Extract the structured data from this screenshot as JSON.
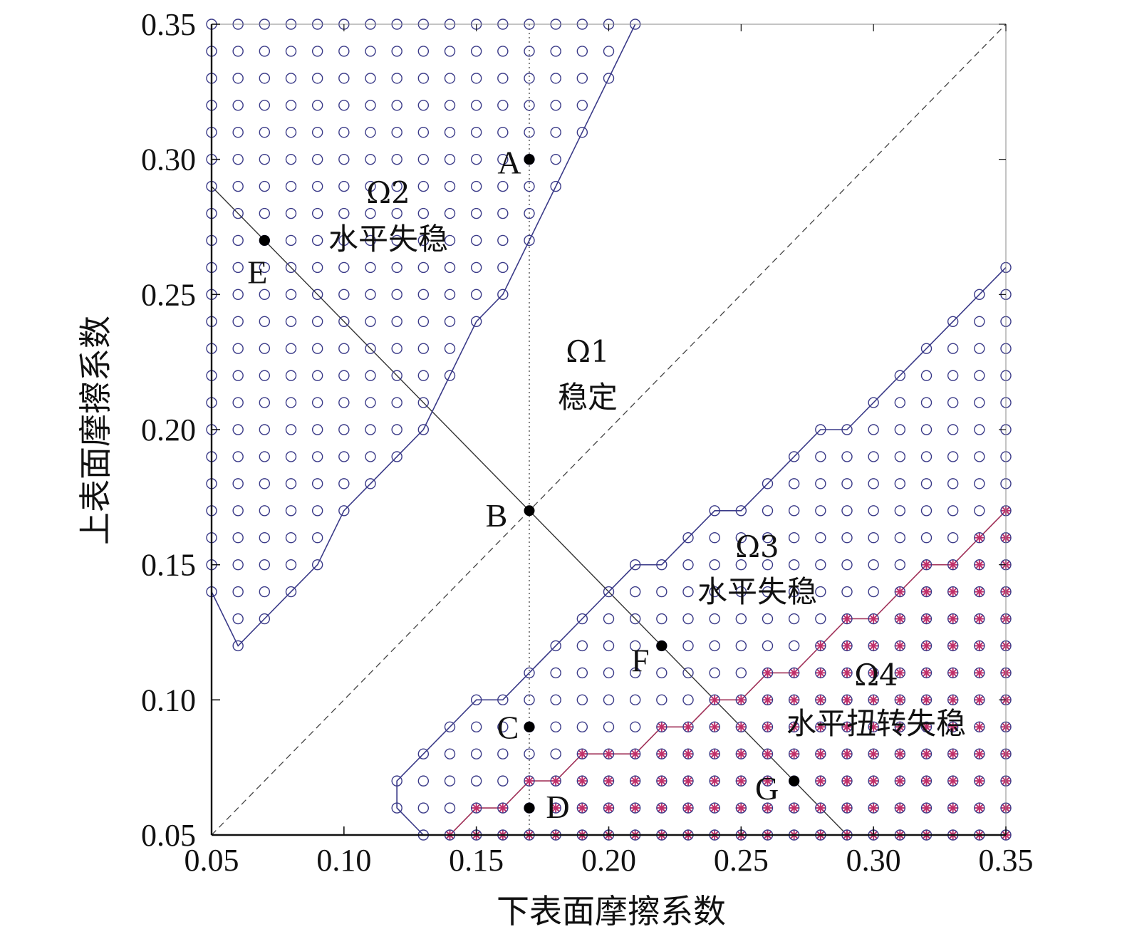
{
  "chart_data": {
    "type": "scatter",
    "xlabel": "下表面摩擦系数",
    "ylabel": "上表面摩擦系数",
    "xlim": [
      0.05,
      0.35
    ],
    "ylim": [
      0.05,
      0.35
    ],
    "xticks": [
      "0.05",
      "0.10",
      "0.15",
      "0.20",
      "0.25",
      "0.30",
      "0.35"
    ],
    "yticks": [
      "0.05",
      "0.10",
      "0.15",
      "0.20",
      "0.25",
      "0.30",
      "0.35"
    ],
    "grid": false,
    "grid_step": 0.01,
    "regions": [
      {
        "id": "omega1",
        "symbol": "Ω1",
        "label": "稳定"
      },
      {
        "id": "omega2",
        "symbol": "Ω2",
        "label": "水平失稳"
      },
      {
        "id": "omega3",
        "symbol": "Ω3",
        "label": "水平失稳"
      },
      {
        "id": "omega4",
        "symbol": "Ω4",
        "label": "水平扭转失稳"
      }
    ],
    "points": [
      {
        "name": "A",
        "x": 0.17,
        "y": 0.3
      },
      {
        "name": "B",
        "x": 0.17,
        "y": 0.17
      },
      {
        "name": "C",
        "x": 0.17,
        "y": 0.09
      },
      {
        "name": "D",
        "x": 0.17,
        "y": 0.06
      },
      {
        "name": "E",
        "x": 0.07,
        "y": 0.27
      },
      {
        "name": "F",
        "x": 0.22,
        "y": 0.12
      },
      {
        "name": "G",
        "x": 0.27,
        "y": 0.07
      }
    ],
    "omega2_boundary": [
      [
        0.05,
        0.35
      ],
      [
        0.21,
        0.35
      ],
      [
        0.2,
        0.33
      ],
      [
        0.19,
        0.31
      ],
      [
        0.18,
        0.29
      ],
      [
        0.17,
        0.27
      ],
      [
        0.16,
        0.25
      ],
      [
        0.15,
        0.24
      ],
      [
        0.14,
        0.22
      ],
      [
        0.13,
        0.2
      ],
      [
        0.12,
        0.19
      ],
      [
        0.11,
        0.18
      ],
      [
        0.1,
        0.17
      ],
      [
        0.09,
        0.15
      ],
      [
        0.08,
        0.14
      ],
      [
        0.07,
        0.13
      ],
      [
        0.06,
        0.12
      ],
      [
        0.05,
        0.14
      ]
    ],
    "omega3_boundary": [
      [
        0.12,
        0.06
      ],
      [
        0.12,
        0.07
      ],
      [
        0.14,
        0.09
      ],
      [
        0.15,
        0.1
      ],
      [
        0.16,
        0.1
      ],
      [
        0.19,
        0.13
      ],
      [
        0.2,
        0.14
      ],
      [
        0.21,
        0.15
      ],
      [
        0.22,
        0.15
      ],
      [
        0.23,
        0.16
      ],
      [
        0.24,
        0.17
      ],
      [
        0.25,
        0.17
      ],
      [
        0.26,
        0.18
      ],
      [
        0.27,
        0.19
      ],
      [
        0.28,
        0.2
      ],
      [
        0.29,
        0.2
      ],
      [
        0.3,
        0.21
      ],
      [
        0.31,
        0.22
      ],
      [
        0.32,
        0.23
      ],
      [
        0.33,
        0.24
      ],
      [
        0.34,
        0.25
      ],
      [
        0.35,
        0.26
      ],
      [
        0.35,
        0.05
      ],
      [
        0.13,
        0.05
      ]
    ],
    "omega4_boundary": [
      [
        0.14,
        0.05
      ],
      [
        0.15,
        0.06
      ],
      [
        0.16,
        0.06
      ],
      [
        0.17,
        0.07
      ],
      [
        0.18,
        0.07
      ],
      [
        0.19,
        0.08
      ],
      [
        0.2,
        0.08
      ],
      [
        0.21,
        0.08
      ],
      [
        0.22,
        0.09
      ],
      [
        0.23,
        0.09
      ],
      [
        0.24,
        0.1
      ],
      [
        0.25,
        0.1
      ],
      [
        0.26,
        0.11
      ],
      [
        0.27,
        0.11
      ],
      [
        0.28,
        0.12
      ],
      [
        0.29,
        0.13
      ],
      [
        0.3,
        0.13
      ],
      [
        0.31,
        0.14
      ],
      [
        0.32,
        0.15
      ],
      [
        0.33,
        0.15
      ],
      [
        0.34,
        0.16
      ],
      [
        0.35,
        0.17
      ],
      [
        0.35,
        0.05
      ]
    ],
    "reference_lines": {
      "diagonal": [
        [
          0.05,
          0.05
        ],
        [
          0.35,
          0.35
        ]
      ],
      "anti_diagonal": [
        [
          0.05,
          0.29
        ],
        [
          0.29,
          0.05
        ]
      ],
      "vertical_x": 0.17
    },
    "colors": {
      "circle": "#3a3a88",
      "star": "#c0306a",
      "boundary": "#3a3a88",
      "omega4_boundary": "#a03058",
      "axis": "#111111"
    }
  }
}
